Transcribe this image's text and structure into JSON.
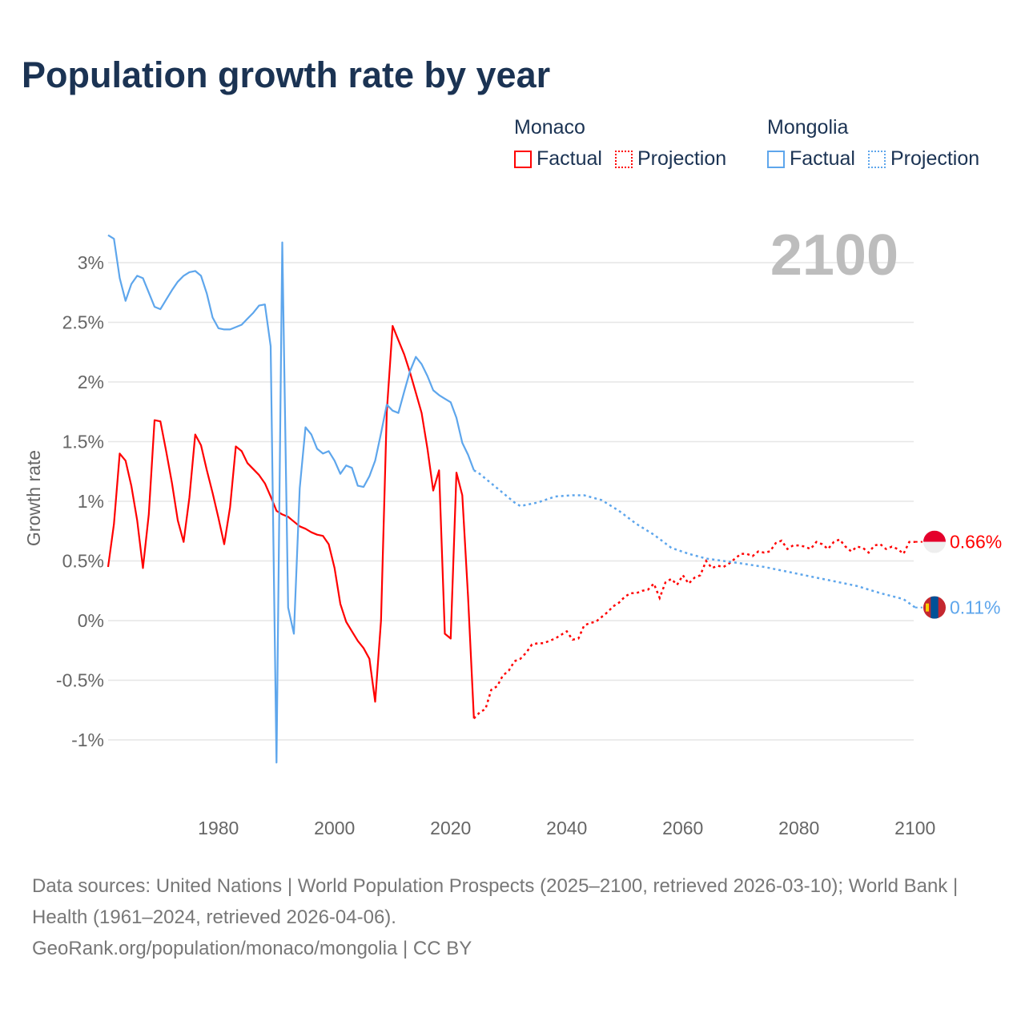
{
  "title": "Population growth rate by year",
  "legend": {
    "groups": [
      {
        "name": "Monaco",
        "color": "#ff0000",
        "factual_label": "Factual",
        "projection_label": "Projection"
      },
      {
        "name": "Mongolia",
        "color": "#5ea6ec",
        "factual_label": "Factual",
        "projection_label": "Projection"
      }
    ]
  },
  "year_display": "2100",
  "footer": {
    "sources": "Data sources: United Nations | World Population Prospects (2025–2100, retrieved 2026-03-10); World Bank | Health (1961–2024, retrieved 2026-04-06).",
    "credit": "GeoRank.org/population/monaco/mongolia | CC BY"
  },
  "chart_data": {
    "type": "line",
    "title": "Population growth rate by year",
    "xlabel": "",
    "ylabel": "Growth rate",
    "xlim": [
      1961,
      2100
    ],
    "ylim": [
      -1.3,
      3.3
    ],
    "x_ticks": [
      1980,
      2000,
      2020,
      2040,
      2060,
      2080,
      2100
    ],
    "y_ticks": [
      -1,
      -0.5,
      0,
      0.5,
      1,
      1.5,
      2,
      2.5,
      3
    ],
    "y_tick_labels": [
      "-1%",
      "-0.5%",
      "0%",
      "0.5%",
      "1%",
      "1.5%",
      "2%",
      "2.5%",
      "3%"
    ],
    "grid": true,
    "legend_position": "top-right",
    "series": [
      {
        "name": "Monaco",
        "color": "#ff0000",
        "end_label": "0.66%",
        "factual": [
          [
            1961,
            0.45
          ],
          [
            1962,
            0.81
          ],
          [
            1963,
            1.4
          ],
          [
            1964,
            1.34
          ],
          [
            1965,
            1.13
          ],
          [
            1966,
            0.84
          ],
          [
            1967,
            0.44
          ],
          [
            1968,
            0.89
          ],
          [
            1969,
            1.68
          ],
          [
            1970,
            1.67
          ],
          [
            1971,
            1.42
          ],
          [
            1972,
            1.15
          ],
          [
            1973,
            0.84
          ],
          [
            1974,
            0.66
          ],
          [
            1975,
            1.03
          ],
          [
            1976,
            1.56
          ],
          [
            1977,
            1.47
          ],
          [
            1978,
            1.26
          ],
          [
            1979,
            1.07
          ],
          [
            1980,
            0.86
          ],
          [
            1981,
            0.64
          ],
          [
            1982,
            0.95
          ],
          [
            1983,
            1.46
          ],
          [
            1984,
            1.42
          ],
          [
            1985,
            1.32
          ],
          [
            1986,
            1.27
          ],
          [
            1987,
            1.22
          ],
          [
            1988,
            1.15
          ],
          [
            1989,
            1.04
          ],
          [
            1990,
            0.92
          ],
          [
            1991,
            0.89
          ],
          [
            1992,
            0.87
          ],
          [
            1993,
            0.83
          ],
          [
            1994,
            0.79
          ],
          [
            1995,
            0.77
          ],
          [
            1996,
            0.74
          ],
          [
            1997,
            0.72
          ],
          [
            1998,
            0.71
          ],
          [
            1999,
            0.64
          ],
          [
            2000,
            0.44
          ],
          [
            2001,
            0.14
          ],
          [
            2002,
            -0.01
          ],
          [
            2003,
            -0.09
          ],
          [
            2004,
            -0.17
          ],
          [
            2005,
            -0.23
          ],
          [
            2006,
            -0.32
          ],
          [
            2007,
            -0.68
          ],
          [
            2008,
            0.0
          ],
          [
            2009,
            1.75
          ],
          [
            2010,
            2.47
          ],
          [
            2011,
            2.35
          ],
          [
            2012,
            2.23
          ],
          [
            2013,
            2.08
          ],
          [
            2014,
            1.91
          ],
          [
            2015,
            1.74
          ],
          [
            2016,
            1.44
          ],
          [
            2017,
            1.09
          ],
          [
            2018,
            1.26
          ],
          [
            2019,
            -0.11
          ],
          [
            2020,
            -0.15
          ],
          [
            2021,
            1.24
          ],
          [
            2022,
            1.05
          ],
          [
            2023,
            0.2
          ],
          [
            2024,
            -0.82
          ]
        ],
        "projection": [
          [
            2024,
            -0.82
          ],
          [
            2025,
            -0.77
          ],
          [
            2026,
            -0.74
          ],
          [
            2027,
            -0.58
          ],
          [
            2028,
            -0.55
          ],
          [
            2029,
            -0.46
          ],
          [
            2030,
            -0.42
          ],
          [
            2031,
            -0.34
          ],
          [
            2032,
            -0.32
          ],
          [
            2033,
            -0.27
          ],
          [
            2034,
            -0.2
          ],
          [
            2035,
            -0.19
          ],
          [
            2036,
            -0.19
          ],
          [
            2037,
            -0.17
          ],
          [
            2038,
            -0.15
          ],
          [
            2039,
            -0.12
          ],
          [
            2040,
            -0.09
          ],
          [
            2041,
            -0.16
          ],
          [
            2042,
            -0.15
          ],
          [
            2043,
            -0.04
          ],
          [
            2044,
            -0.02
          ],
          [
            2045,
            -0.01
          ],
          [
            2046,
            0.03
          ],
          [
            2047,
            0.07
          ],
          [
            2048,
            0.12
          ],
          [
            2049,
            0.15
          ],
          [
            2050,
            0.2
          ],
          [
            2051,
            0.23
          ],
          [
            2052,
            0.23
          ],
          [
            2053,
            0.25
          ],
          [
            2054,
            0.26
          ],
          [
            2055,
            0.31
          ],
          [
            2056,
            0.19
          ],
          [
            2057,
            0.32
          ],
          [
            2058,
            0.35
          ],
          [
            2059,
            0.3
          ],
          [
            2060,
            0.38
          ],
          [
            2061,
            0.31
          ],
          [
            2062,
            0.36
          ],
          [
            2063,
            0.38
          ],
          [
            2064,
            0.5
          ],
          [
            2065,
            0.44
          ],
          [
            2066,
            0.46
          ],
          [
            2067,
            0.45
          ],
          [
            2068,
            0.48
          ],
          [
            2069,
            0.52
          ],
          [
            2070,
            0.56
          ],
          [
            2071,
            0.56
          ],
          [
            2072,
            0.54
          ],
          [
            2073,
            0.58
          ],
          [
            2074,
            0.57
          ],
          [
            2075,
            0.58
          ],
          [
            2076,
            0.65
          ],
          [
            2077,
            0.67
          ],
          [
            2078,
            0.6
          ],
          [
            2079,
            0.63
          ],
          [
            2080,
            0.63
          ],
          [
            2081,
            0.62
          ],
          [
            2082,
            0.6
          ],
          [
            2083,
            0.66
          ],
          [
            2084,
            0.64
          ],
          [
            2085,
            0.6
          ],
          [
            2086,
            0.66
          ],
          [
            2087,
            0.68
          ],
          [
            2088,
            0.62
          ],
          [
            2089,
            0.58
          ],
          [
            2090,
            0.62
          ],
          [
            2091,
            0.61
          ],
          [
            2092,
            0.57
          ],
          [
            2093,
            0.63
          ],
          [
            2094,
            0.64
          ],
          [
            2095,
            0.6
          ],
          [
            2096,
            0.62
          ],
          [
            2097,
            0.6
          ],
          [
            2098,
            0.56
          ],
          [
            2099,
            0.66
          ],
          [
            2100,
            0.66
          ]
        ]
      },
      {
        "name": "Mongolia",
        "color": "#5ea6ec",
        "end_label": "0.11%",
        "factual": [
          [
            1961,
            3.23
          ],
          [
            1962,
            3.2
          ],
          [
            1963,
            2.87
          ],
          [
            1964,
            2.68
          ],
          [
            1965,
            2.82
          ],
          [
            1966,
            2.89
          ],
          [
            1967,
            2.87
          ],
          [
            1968,
            2.75
          ],
          [
            1969,
            2.63
          ],
          [
            1970,
            2.61
          ],
          [
            1971,
            2.69
          ],
          [
            1972,
            2.77
          ],
          [
            1973,
            2.84
          ],
          [
            1974,
            2.89
          ],
          [
            1975,
            2.92
          ],
          [
            1976,
            2.93
          ],
          [
            1977,
            2.89
          ],
          [
            1978,
            2.74
          ],
          [
            1979,
            2.54
          ],
          [
            1980,
            2.45
          ],
          [
            1981,
            2.44
          ],
          [
            1982,
            2.44
          ],
          [
            1983,
            2.46
          ],
          [
            1984,
            2.48
          ],
          [
            1985,
            2.53
          ],
          [
            1986,
            2.58
          ],
          [
            1987,
            2.64
          ],
          [
            1988,
            2.65
          ],
          [
            1989,
            2.3
          ],
          [
            1990,
            -1.19
          ],
          [
            1991,
            3.17
          ],
          [
            1992,
            0.11
          ],
          [
            1993,
            -0.11
          ],
          [
            1994,
            1.11
          ],
          [
            1995,
            1.62
          ],
          [
            1996,
            1.56
          ],
          [
            1997,
            1.44
          ],
          [
            1998,
            1.4
          ],
          [
            1999,
            1.42
          ],
          [
            2000,
            1.34
          ],
          [
            2001,
            1.23
          ],
          [
            2002,
            1.3
          ],
          [
            2003,
            1.28
          ],
          [
            2004,
            1.13
          ],
          [
            2005,
            1.12
          ],
          [
            2006,
            1.21
          ],
          [
            2007,
            1.34
          ],
          [
            2008,
            1.57
          ],
          [
            2009,
            1.81
          ],
          [
            2010,
            1.76
          ],
          [
            2011,
            1.74
          ],
          [
            2012,
            1.92
          ],
          [
            2013,
            2.09
          ],
          [
            2014,
            2.21
          ],
          [
            2015,
            2.15
          ],
          [
            2016,
            2.05
          ],
          [
            2017,
            1.93
          ],
          [
            2018,
            1.89
          ],
          [
            2019,
            1.86
          ],
          [
            2020,
            1.83
          ],
          [
            2021,
            1.7
          ],
          [
            2022,
            1.49
          ],
          [
            2023,
            1.39
          ],
          [
            2024,
            1.26
          ]
        ],
        "projection": [
          [
            2024,
            1.26
          ],
          [
            2025,
            1.23
          ],
          [
            2028,
            1.11
          ],
          [
            2031,
            0.99
          ],
          [
            2032,
            0.96
          ],
          [
            2035,
            0.99
          ],
          [
            2038,
            1.04
          ],
          [
            2041,
            1.05
          ],
          [
            2043,
            1.05
          ],
          [
            2046,
            1.01
          ],
          [
            2049,
            0.92
          ],
          [
            2052,
            0.81
          ],
          [
            2055,
            0.72
          ],
          [
            2058,
            0.61
          ],
          [
            2061,
            0.56
          ],
          [
            2064,
            0.52
          ],
          [
            2067,
            0.5
          ],
          [
            2070,
            0.48
          ],
          [
            2074,
            0.45
          ],
          [
            2078,
            0.41
          ],
          [
            2082,
            0.37
          ],
          [
            2086,
            0.33
          ],
          [
            2090,
            0.29
          ],
          [
            2094,
            0.23
          ],
          [
            2098,
            0.18
          ],
          [
            2100,
            0.11
          ]
        ]
      }
    ]
  }
}
